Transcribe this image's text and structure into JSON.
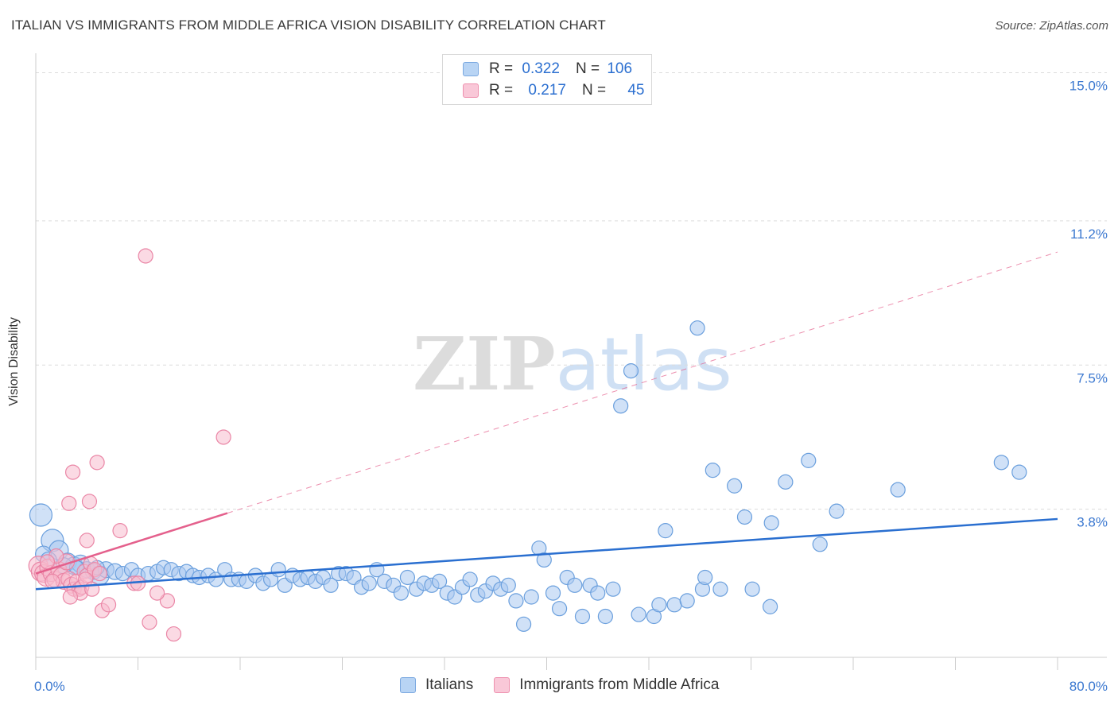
{
  "header": {
    "title": "ITALIAN VS IMMIGRANTS FROM MIDDLE AFRICA VISION DISABILITY CORRELATION CHART",
    "source": "Source: ZipAtlas.com"
  },
  "watermark": "ZIPatlas",
  "legend": {
    "rows": [
      {
        "r_label": "R =",
        "r_value": "0.322",
        "n_label": "N =",
        "n_value": "106"
      },
      {
        "r_label": "R =",
        "r_value": "0.217",
        "n_label": "N =",
        "n_value": "45"
      }
    ]
  },
  "colors": {
    "italians_fill": "#a9c8f0",
    "italians_stroke": "#6a9fdd",
    "italians_line": "#2a6fd0",
    "africa_fill": "#f7bccd",
    "africa_stroke": "#ea86a6",
    "africa_line": "#e4608c",
    "tick_label": "#3b78d0",
    "grid": "#dcdcdc"
  },
  "chart_data": {
    "type": "scatter",
    "title": "ITALIAN VS IMMIGRANTS FROM MIDDLE AFRICA VISION DISABILITY CORRELATION CHART",
    "xlabel": "",
    "ylabel": "Vision Disability",
    "xlim": [
      0,
      80
    ],
    "ylim": [
      0,
      15.5
    ],
    "x_tick_labels": [
      "0.0%",
      "80.0%"
    ],
    "y_ticks": [
      3.8,
      7.5,
      11.2,
      15.0
    ],
    "y_tick_labels": [
      "3.8%",
      "7.5%",
      "11.2%",
      "15.0%"
    ],
    "grid": true,
    "series": [
      {
        "name": "Italians",
        "trend": {
          "x": [
            0,
            80
          ],
          "y": [
            1.75,
            3.55
          ],
          "style": "solid"
        },
        "points": [
          [
            0.4,
            3.65,
            14
          ],
          [
            1.3,
            3.0,
            14
          ],
          [
            1.8,
            2.75,
            12
          ],
          [
            2.5,
            2.45,
            11
          ],
          [
            3.0,
            2.35,
            11
          ],
          [
            3.5,
            2.4,
            11
          ],
          [
            4.0,
            2.25,
            10
          ],
          [
            4.5,
            2.2,
            10
          ],
          [
            5.0,
            2.1,
            12
          ],
          [
            5.5,
            2.25,
            10
          ],
          [
            6.2,
            2.2,
            10
          ],
          [
            6.8,
            2.15,
            9
          ],
          [
            7.5,
            2.25,
            9
          ],
          [
            8.0,
            2.1,
            9
          ],
          [
            8.8,
            2.15,
            9
          ],
          [
            9.5,
            2.2,
            9
          ],
          [
            10.0,
            2.3,
            9
          ],
          [
            10.6,
            2.25,
            9
          ],
          [
            11.2,
            2.15,
            9
          ],
          [
            11.8,
            2.2,
            9
          ],
          [
            12.3,
            2.1,
            9
          ],
          [
            12.8,
            2.05,
            9
          ],
          [
            13.5,
            2.1,
            9
          ],
          [
            14.1,
            2.0,
            9
          ],
          [
            14.8,
            2.25,
            9
          ],
          [
            15.3,
            2.0,
            9
          ],
          [
            15.9,
            2.0,
            9
          ],
          [
            16.5,
            1.95,
            9
          ],
          [
            17.2,
            2.1,
            9
          ],
          [
            17.8,
            1.9,
            9
          ],
          [
            18.4,
            2.0,
            9
          ],
          [
            19.0,
            2.25,
            9
          ],
          [
            19.5,
            1.85,
            9
          ],
          [
            20.1,
            2.1,
            9
          ],
          [
            20.7,
            2.0,
            9
          ],
          [
            21.3,
            2.05,
            9
          ],
          [
            21.9,
            1.95,
            9
          ],
          [
            22.5,
            2.05,
            9
          ],
          [
            23.1,
            1.85,
            9
          ],
          [
            23.7,
            2.15,
            9
          ],
          [
            24.3,
            2.15,
            9
          ],
          [
            24.9,
            2.05,
            9
          ],
          [
            25.5,
            1.8,
            9
          ],
          [
            26.1,
            1.9,
            9
          ],
          [
            26.7,
            2.25,
            9
          ],
          [
            27.3,
            1.95,
            9
          ],
          [
            28.0,
            1.85,
            9
          ],
          [
            28.6,
            1.65,
            9
          ],
          [
            29.1,
            2.05,
            9
          ],
          [
            29.8,
            1.75,
            9
          ],
          [
            30.4,
            1.9,
            9
          ],
          [
            31.0,
            1.85,
            9
          ],
          [
            31.6,
            1.95,
            9
          ],
          [
            32.2,
            1.65,
            9
          ],
          [
            32.8,
            1.55,
            9
          ],
          [
            33.4,
            1.8,
            9
          ],
          [
            34.0,
            2.0,
            9
          ],
          [
            34.6,
            1.6,
            9
          ],
          [
            35.2,
            1.7,
            9
          ],
          [
            35.8,
            1.9,
            9
          ],
          [
            36.4,
            1.75,
            9
          ],
          [
            37.0,
            1.85,
            9
          ],
          [
            37.6,
            1.45,
            9
          ],
          [
            38.2,
            0.85,
            9
          ],
          [
            38.8,
            1.55,
            9
          ],
          [
            39.4,
            2.8,
            9
          ],
          [
            39.8,
            2.5,
            9
          ],
          [
            40.5,
            1.65,
            9
          ],
          [
            41.0,
            1.25,
            9
          ],
          [
            41.6,
            2.05,
            9
          ],
          [
            42.2,
            1.85,
            9
          ],
          [
            42.8,
            1.05,
            9
          ],
          [
            43.4,
            1.85,
            9
          ],
          [
            44.0,
            1.65,
            9
          ],
          [
            44.6,
            1.05,
            9
          ],
          [
            45.2,
            1.75,
            9
          ],
          [
            45.8,
            6.45,
            9
          ],
          [
            46.6,
            7.35,
            9
          ],
          [
            47.2,
            1.1,
            9
          ],
          [
            48.4,
            1.05,
            9
          ],
          [
            48.8,
            1.35,
            9
          ],
          [
            49.3,
            3.25,
            9
          ],
          [
            50.0,
            1.35,
            9
          ],
          [
            51.0,
            1.45,
            9
          ],
          [
            51.8,
            8.45,
            9
          ],
          [
            52.2,
            1.75,
            9
          ],
          [
            52.4,
            2.05,
            9
          ],
          [
            53.0,
            4.8,
            9
          ],
          [
            53.6,
            1.75,
            9
          ],
          [
            54.7,
            4.4,
            9
          ],
          [
            55.5,
            3.6,
            9
          ],
          [
            56.1,
            1.75,
            9
          ],
          [
            57.5,
            1.3,
            9
          ],
          [
            57.6,
            3.45,
            9
          ],
          [
            58.7,
            4.5,
            9
          ],
          [
            60.5,
            5.05,
            9
          ],
          [
            61.4,
            2.9,
            9
          ],
          [
            62.7,
            3.75,
            9
          ],
          [
            67.5,
            4.3,
            9
          ],
          [
            75.6,
            5.0,
            9
          ],
          [
            77.0,
            4.75,
            9
          ],
          [
            0.6,
            2.65,
            10
          ],
          [
            1.0,
            2.5,
            10
          ],
          [
            2.2,
            2.35,
            10
          ],
          [
            3.2,
            2.3,
            9
          ],
          [
            4.8,
            2.3,
            9
          ]
        ]
      },
      {
        "name": "Immigrants from Middle Africa",
        "trend": {
          "x": [
            0,
            15
          ],
          "y": [
            2.15,
            3.7
          ],
          "style": "solid",
          "extended": {
            "x": [
              15,
              80
            ],
            "y": [
              3.7,
              10.4
            ],
            "style": "dashed"
          }
        },
        "points": [
          [
            0.2,
            2.35,
            12
          ],
          [
            0.4,
            2.2,
            12
          ],
          [
            0.6,
            2.15,
            11
          ],
          [
            0.8,
            2.05,
            11
          ],
          [
            1.0,
            2.3,
            11
          ],
          [
            1.2,
            2.15,
            10
          ],
          [
            1.5,
            2.0,
            10
          ],
          [
            1.8,
            2.25,
            10
          ],
          [
            2.0,
            2.1,
            10
          ],
          [
            2.2,
            1.95,
            10
          ],
          [
            2.4,
            2.45,
            10
          ],
          [
            2.6,
            2.0,
            10
          ],
          [
            2.8,
            1.85,
            10
          ],
          [
            3.0,
            1.75,
            9
          ],
          [
            3.2,
            1.95,
            9
          ],
          [
            3.4,
            1.75,
            9
          ],
          [
            3.6,
            1.8,
            9
          ],
          [
            3.8,
            2.2,
            9
          ],
          [
            4.0,
            2.1,
            9
          ],
          [
            4.3,
            2.4,
            9
          ],
          [
            4.6,
            2.25,
            9
          ],
          [
            5.0,
            2.15,
            9
          ],
          [
            2.6,
            3.95,
            9
          ],
          [
            2.9,
            4.75,
            9
          ],
          [
            4.0,
            3.0,
            9
          ],
          [
            4.2,
            4.0,
            9
          ],
          [
            4.8,
            5.0,
            9
          ],
          [
            5.2,
            1.2,
            9
          ],
          [
            5.7,
            1.35,
            9
          ],
          [
            6.6,
            3.25,
            9
          ],
          [
            7.7,
            1.9,
            9
          ],
          [
            8.6,
            10.3,
            9
          ],
          [
            8.9,
            0.9,
            9
          ],
          [
            10.3,
            1.45,
            9
          ],
          [
            10.8,
            0.6,
            9
          ],
          [
            14.7,
            5.65,
            9
          ],
          [
            3.5,
            1.65,
            9
          ],
          [
            2.7,
            1.55,
            9
          ],
          [
            1.6,
            2.6,
            9
          ],
          [
            3.9,
            2.0,
            9
          ],
          [
            4.4,
            1.75,
            9
          ],
          [
            1.3,
            1.95,
            9
          ],
          [
            0.9,
            2.45,
            9
          ],
          [
            8.0,
            1.9,
            9
          ],
          [
            9.5,
            1.65,
            9
          ]
        ]
      }
    ]
  },
  "bottom_legend": {
    "items": [
      "Italians",
      "Immigrants from Middle Africa"
    ]
  }
}
